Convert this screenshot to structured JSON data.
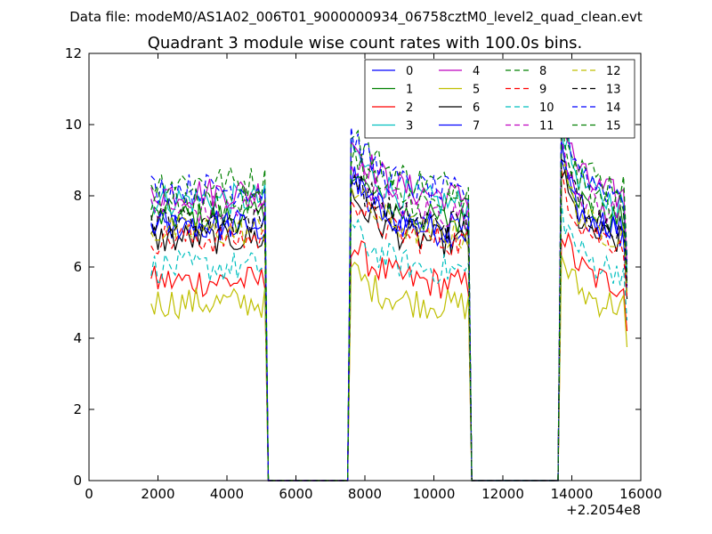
{
  "suptitle": "Data file: modeM0/AS1A02_006T01_9000000934_06758cztM0_level2_quad_clean.evt",
  "chart_data": {
    "type": "line",
    "title": "Quadrant 3 module wise count rates with 100.0s bins.",
    "xlabel": "",
    "ylabel": "",
    "xlim": [
      0,
      16000
    ],
    "ylim": [
      0,
      12
    ],
    "x_offset_label": "+2.2054e8",
    "xticks": [
      0,
      2000,
      4000,
      6000,
      8000,
      10000,
      12000,
      14000,
      16000
    ],
    "xtick_labels": [
      "0",
      "2000",
      "4000",
      "6000",
      "8000",
      "10000",
      "12000",
      "14000",
      "16000"
    ],
    "yticks": [
      0,
      2,
      4,
      6,
      8,
      10,
      12
    ],
    "ytick_labels": [
      "0",
      "2",
      "4",
      "6",
      "8",
      "10",
      "12"
    ],
    "grid": false,
    "legend_position": "top-right",
    "legend_columns": 4,
    "segments": [
      {
        "x_start": 1800,
        "x_end": 5100,
        "step": 100
      },
      {
        "x_start": 7600,
        "x_end": 11000,
        "step": 100
      },
      {
        "x_start": 13700,
        "x_end": 15600,
        "step": 100
      }
    ],
    "zero_spans": [
      {
        "x_start": 5200,
        "x_end": 7500
      },
      {
        "x_start": 11100,
        "x_end": 13600
      }
    ],
    "series": [
      {
        "name": "0",
        "color": "#0000ff",
        "style": "solid",
        "level": 7.1
      },
      {
        "name": "1",
        "color": "#008000",
        "style": "solid",
        "level": 7.4
      },
      {
        "name": "2",
        "color": "#ff0000",
        "style": "solid",
        "level": 5.6
      },
      {
        "name": "3",
        "color": "#00bfbf",
        "style": "solid",
        "level": 7.9
      },
      {
        "name": "4",
        "color": "#bf00bf",
        "style": "solid",
        "level": 8.1
      },
      {
        "name": "5",
        "color": "#bfbf00",
        "style": "solid",
        "level": 5.0
      },
      {
        "name": "6",
        "color": "#000000",
        "style": "solid",
        "level": 6.8
      },
      {
        "name": "7",
        "color": "#0000ff",
        "style": "solid",
        "level": 7.2
      },
      {
        "name": "8",
        "color": "#008000",
        "style": "dashed",
        "level": 8.4
      },
      {
        "name": "9",
        "color": "#ff0000",
        "style": "dashed",
        "level": 6.8
      },
      {
        "name": "10",
        "color": "#00bfbf",
        "style": "dashed",
        "level": 6.0
      },
      {
        "name": "11",
        "color": "#bf00bf",
        "style": "dashed",
        "level": 7.6
      },
      {
        "name": "12",
        "color": "#bfbf00",
        "style": "dashed",
        "level": 7.0
      },
      {
        "name": "13",
        "color": "#000000",
        "style": "dashed",
        "level": 7.3
      },
      {
        "name": "14",
        "color": "#0000ff",
        "style": "dashed",
        "level": 8.2
      },
      {
        "name": "15",
        "color": "#008000",
        "style": "dashed",
        "level": 7.8
      }
    ]
  }
}
